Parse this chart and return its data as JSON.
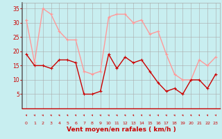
{
  "hours": [
    0,
    1,
    2,
    3,
    4,
    5,
    6,
    7,
    8,
    9,
    10,
    11,
    12,
    13,
    14,
    15,
    16,
    17,
    18,
    19,
    20,
    21,
    22,
    23
  ],
  "wind_avg": [
    19,
    15,
    15,
    14,
    17,
    17,
    16,
    5,
    5,
    6,
    19,
    14,
    18,
    16,
    17,
    13,
    9,
    6,
    7,
    5,
    10,
    10,
    7,
    12
  ],
  "wind_gust": [
    31,
    16,
    35,
    33,
    27,
    24,
    24,
    13,
    12,
    13,
    32,
    33,
    33,
    30,
    31,
    26,
    27,
    19,
    12,
    10,
    10,
    17,
    15,
    18
  ],
  "avg_color": "#cc0000",
  "gust_color": "#ff9999",
  "bg_color": "#c8eef0",
  "grid_color": "#aaaaaa",
  "xlabel": "Vent moyen/en rafales ( km/h )",
  "xlabel_color": "#cc0000",
  "tick_color": "#cc0000",
  "ylim": [
    0,
    37
  ],
  "yticks": [
    5,
    10,
    15,
    20,
    25,
    30,
    35
  ],
  "linewidth": 1.0,
  "markersize": 3.5
}
